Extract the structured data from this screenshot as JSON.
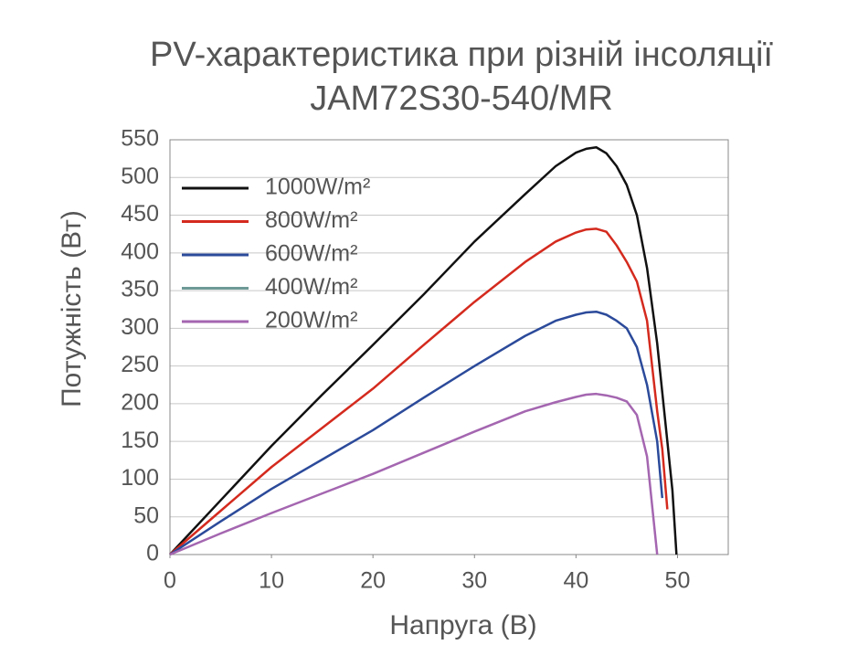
{
  "chart_data": {
    "type": "line",
    "title": "PV-характеристика при різній інсоляції",
    "subtitle": "JAM72S30-540/MR",
    "x_label": "Напруга (В)",
    "y_label": "Потужність (Вт)",
    "x": [
      0,
      5,
      10,
      15,
      20,
      25,
      30,
      35,
      38,
      40,
      41,
      42,
      43,
      44,
      45,
      46,
      47,
      48,
      48.5,
      49,
      49.5,
      49.9
    ],
    "series": [
      {
        "name": "1000W/m²",
        "color": "#111111",
        "values": [
          0,
          72,
          144,
          212,
          278,
          345,
          415,
          478,
          515,
          533,
          538,
          540,
          532,
          515,
          490,
          450,
          380,
          280,
          215,
          150,
          85,
          0
        ]
      },
      {
        "name": "800W/m²",
        "color": "#d42a1e",
        "values": [
          0,
          58,
          116,
          168,
          220,
          278,
          335,
          388,
          415,
          427,
          431,
          432,
          428,
          410,
          388,
          362,
          310,
          190,
          140,
          60,
          null,
          null
        ]
      },
      {
        "name": "600W/m²",
        "color": "#2b4a9a",
        "values": [
          0,
          44,
          87,
          126,
          165,
          208,
          250,
          290,
          310,
          318,
          321,
          322,
          318,
          310,
          300,
          275,
          225,
          150,
          75,
          null,
          null,
          null
        ]
      },
      {
        "name": "400W/m²",
        "color": "#6e9a96",
        "values": [
          null,
          null,
          null,
          null,
          null,
          null,
          null,
          null,
          null,
          null,
          null,
          null,
          null,
          null,
          null,
          null,
          null,
          null,
          null,
          null,
          null,
          null
        ]
      },
      {
        "name": "200W/m²",
        "color": "#a466b0",
        "values": [
          0,
          28,
          55,
          81,
          107,
          135,
          163,
          190,
          202,
          209,
          212,
          213,
          211,
          208,
          203,
          185,
          130,
          0,
          null,
          null,
          null,
          null
        ]
      }
    ],
    "xlim": [
      0,
      55
    ],
    "xticks": [
      0,
      10,
      20,
      30,
      40,
      50
    ],
    "ylim": [
      0,
      550
    ],
    "yticks": [
      0,
      50,
      100,
      150,
      200,
      250,
      300,
      350,
      400,
      450,
      500,
      550
    ],
    "grid": true,
    "legend": "upper left"
  }
}
